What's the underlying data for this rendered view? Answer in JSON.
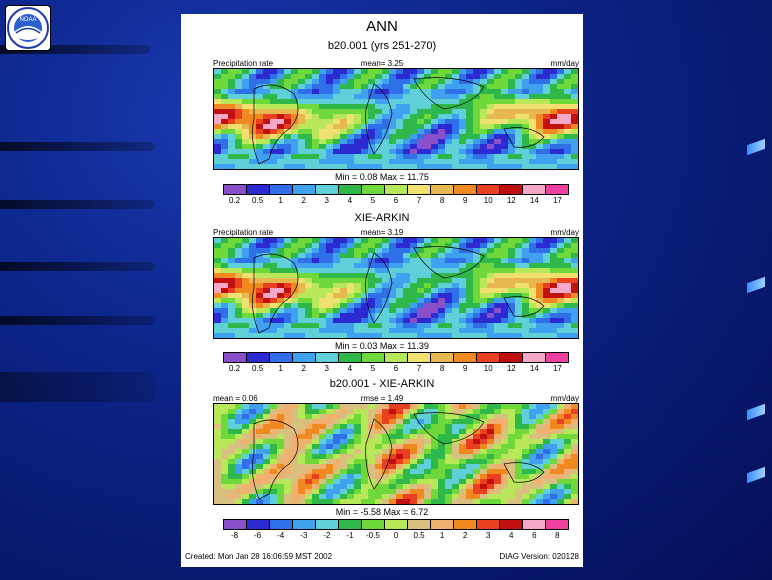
{
  "title": "ANN",
  "panels": [
    {
      "subtitle": "b20.001 (yrs 251-270)",
      "left": "Precipitation rate",
      "center": "mean= 3.25",
      "right": "mm/day",
      "stats": "Min = 0.08 Max = 11.75",
      "ticks": [
        "0.2",
        "0.5",
        "1",
        "2",
        "3",
        "4",
        "5",
        "6",
        "7",
        "8",
        "9",
        "10",
        "12",
        "14",
        "17"
      ]
    },
    {
      "subtitle": "XIE-ARKIN",
      "left": "Precipitation rate",
      "center": "mean= 3.19",
      "right": "mm/day",
      "stats": "Min = 0.03 Max = 11.39",
      "ticks": [
        "0.2",
        "0.5",
        "1",
        "2",
        "3",
        "4",
        "5",
        "6",
        "7",
        "8",
        "9",
        "10",
        "12",
        "14",
        "17"
      ]
    },
    {
      "subtitle": "b20.001 - XIE-ARKIN",
      "left": "mean = 0.06",
      "center": "rmse = 1.49",
      "right": "mm/day",
      "stats": "Min = -5.58 Max = 6.72",
      "ticks": [
        "-8",
        "-6",
        "-4",
        "-3",
        "-2",
        "-1",
        "-0.5",
        "0",
        "0.5",
        "1",
        "2",
        "3",
        "4",
        "6",
        "8"
      ]
    }
  ],
  "footer_left": "Created: Mon Jan 28 16:06:59 MST 2002",
  "footer_right": "DIAG Version: 020128",
  "logo_text": "NOAA",
  "colors": {
    "precip_scale": [
      "#8b4fc9",
      "#2b2bd1",
      "#2f6fe8",
      "#3fa1f0",
      "#5fd0d8",
      "#2fb84a",
      "#6fd83a",
      "#b8e85a",
      "#f0e070",
      "#e8b850",
      "#f08a20",
      "#e84020",
      "#c01010",
      "#f7a7c8",
      "#f040a0"
    ],
    "diff_scale": [
      "#8b4fc9",
      "#2b2bd1",
      "#2f6fe8",
      "#3fa1f0",
      "#5fd0d8",
      "#2fb84a",
      "#6fd83a",
      "#b8e85a",
      "#d8c080",
      "#f0b070",
      "#f08a20",
      "#e84020",
      "#c01010",
      "#f7a7c8",
      "#f040a0"
    ]
  }
}
